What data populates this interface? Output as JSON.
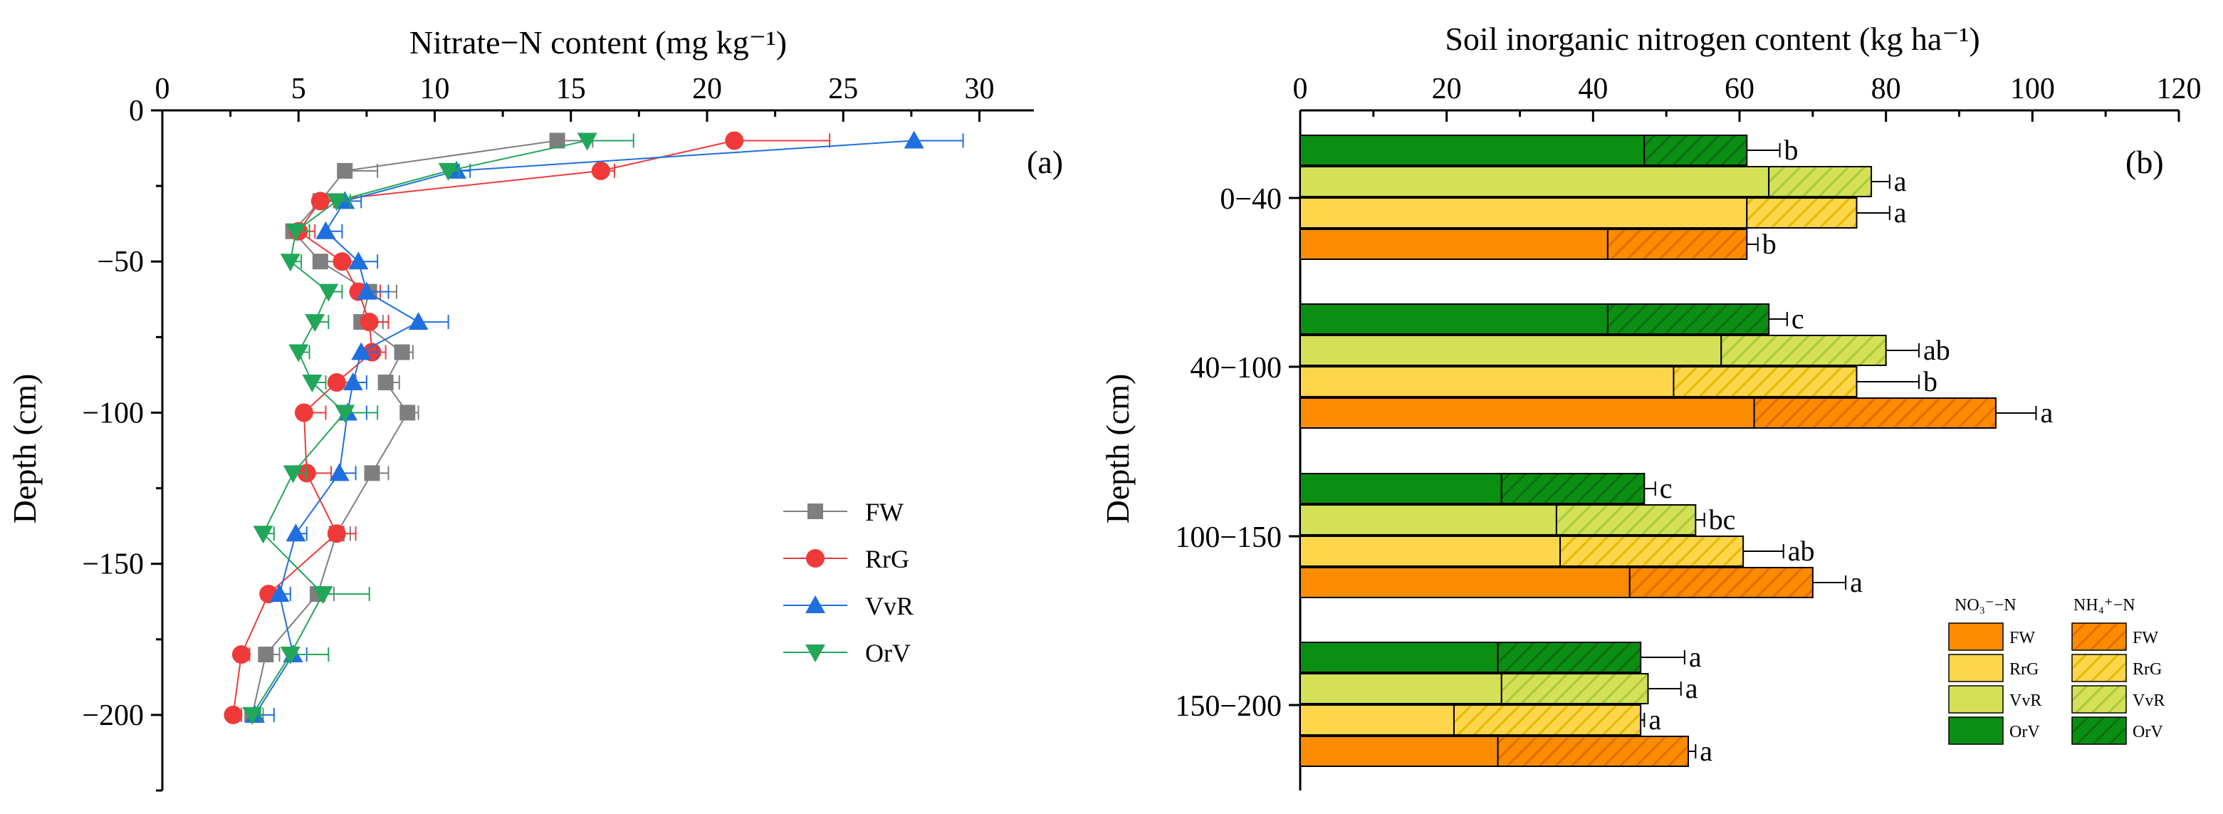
{
  "colors": {
    "FW": "#7f7f7f",
    "RrG": "#f03a3a",
    "VvR": "#1f6fe0",
    "OrV": "#22a65a",
    "bar_FW": "#fb8c00",
    "bar_RrG": "#fdd64b",
    "bar_VvR": "#d4e157",
    "bar_OrV": "#0b8f12",
    "hatch_FW": "#e66b00",
    "hatch_RrG": "#e9b800",
    "hatch_VvR": "#a8c93b",
    "hatch_OrV": "#0a6e0f"
  },
  "chart_data": [
    {
      "type": "line",
      "panel_label": "(a)",
      "title": "Nitrate−N content (mg kg⁻¹)",
      "xlabel": "Nitrate−N content (mg kg⁻¹)",
      "ylabel": "Depth (cm)",
      "xlim": [
        0,
        32
      ],
      "ylim": [
        -225,
        0
      ],
      "x_ticks": [
        "0",
        "5",
        "10",
        "15",
        "20",
        "25",
        "30"
      ],
      "y_ticks": [
        "0",
        "−50",
        "−100",
        "−150",
        "−200"
      ],
      "legend": [
        "FW",
        "RrG",
        "VvR",
        "OrV"
      ],
      "legend_position": "right",
      "series": [
        {
          "name": "FW",
          "marker": "square",
          "depth": [
            -10,
            -20,
            -30,
            -40,
            -50,
            -60,
            -70,
            -80,
            -90,
            -100,
            -120,
            -140,
            -160,
            -180,
            -200
          ],
          "values": [
            14.5,
            6.7,
            5.8,
            4.8,
            5.8,
            7.6,
            7.3,
            8.8,
            8.2,
            9.0,
            7.7,
            6.4,
            5.7,
            3.8,
            3.3
          ],
          "errors": [
            1.3,
            1.2,
            0.6,
            0.6,
            0.8,
            1.0,
            0.8,
            0.4,
            0.5,
            0.4,
            0.6,
            0.5,
            0.6,
            0.5,
            0.4
          ]
        },
        {
          "name": "RrG",
          "marker": "circle",
          "depth": [
            -10,
            -20,
            -30,
            -40,
            -50,
            -60,
            -70,
            -80,
            -90,
            -100,
            -120,
            -140,
            -160,
            -180,
            -200
          ],
          "values": [
            21.0,
            16.1,
            5.8,
            5.0,
            6.6,
            7.2,
            7.6,
            7.7,
            6.4,
            5.2,
            5.3,
            6.4,
            3.9,
            2.9,
            2.6
          ],
          "errors": [
            3.5,
            0.5,
            0.5,
            0.6,
            0.6,
            0.8,
            0.7,
            0.5,
            0.7,
            0.8,
            0.9,
            0.7,
            0.4,
            0.3,
            0.3
          ]
        },
        {
          "name": "VvR",
          "marker": "triangle-up",
          "depth": [
            -10,
            -20,
            -30,
            -40,
            -50,
            -60,
            -70,
            -80,
            -90,
            -100,
            -120,
            -140,
            -160,
            -180,
            -200
          ],
          "values": [
            27.6,
            10.8,
            6.7,
            6.0,
            7.2,
            7.5,
            9.4,
            7.3,
            7.0,
            6.8,
            6.5,
            4.9,
            4.3,
            4.8,
            3.4
          ],
          "errors": [
            1.8,
            0.5,
            0.6,
            0.6,
            0.7,
            0.8,
            1.1,
            0.6,
            0.5,
            0.7,
            0.6,
            0.4,
            0.4,
            0.5,
            0.7
          ]
        },
        {
          "name": "OrV",
          "marker": "triangle-down",
          "depth": [
            -10,
            -20,
            -30,
            -40,
            -50,
            -60,
            -70,
            -80,
            -90,
            -100,
            -120,
            -140,
            -160,
            -180,
            -200
          ],
          "values": [
            15.6,
            10.5,
            6.4,
            4.9,
            4.7,
            6.1,
            5.6,
            5.0,
            5.5,
            6.7,
            4.8,
            3.7,
            5.9,
            4.7,
            3.3
          ],
          "errors": [
            1.7,
            0.4,
            0.5,
            0.5,
            0.4,
            0.5,
            0.5,
            0.4,
            0.5,
            1.2,
            0.5,
            0.4,
            1.7,
            1.4,
            0.3
          ]
        }
      ]
    },
    {
      "type": "bar",
      "orientation": "horizontal",
      "stacked": true,
      "panel_label": "(b)",
      "title": "Soil inorganic nitrogen content (kg ha⁻¹)",
      "xlabel": "Soil inorganic nitrogen content (kg ha⁻¹)",
      "ylabel": "Depth (cm)",
      "xlim": [
        0,
        120
      ],
      "x_ticks": [
        "0",
        "20",
        "40",
        "60",
        "80",
        "100",
        "120"
      ],
      "categories": [
        "0−40",
        "40−100",
        "100−150",
        "150−200"
      ],
      "treatments": [
        "OrV",
        "VvR",
        "RrG",
        "FW"
      ],
      "components": [
        "NO₃⁻−N",
        "NH₄⁺−N"
      ],
      "legend_headers": [
        "NO₃⁻−N",
        "NH₄⁺−N"
      ],
      "legend_items": [
        "FW",
        "RrG",
        "VvR",
        "OrV"
      ],
      "legend_position": "bottom-right",
      "groups": [
        {
          "category": "0−40",
          "bars": [
            {
              "treatment": "OrV",
              "nitrate": 47,
              "total": 61,
              "error": 4.5,
              "letter": "b"
            },
            {
              "treatment": "VvR",
              "nitrate": 64,
              "total": 78,
              "error": 2.5,
              "letter": "a"
            },
            {
              "treatment": "RrG",
              "nitrate": 61,
              "total": 76,
              "error": 4.5,
              "letter": "a"
            },
            {
              "treatment": "FW",
              "nitrate": 42,
              "total": 61,
              "error": 1.5,
              "letter": "b"
            }
          ]
        },
        {
          "category": "40−100",
          "bars": [
            {
              "treatment": "OrV",
              "nitrate": 42,
              "total": 64,
              "error": 2.5,
              "letter": "c"
            },
            {
              "treatment": "VvR",
              "nitrate": 57.5,
              "total": 80,
              "error": 4.5,
              "letter": "ab"
            },
            {
              "treatment": "RrG",
              "nitrate": 51,
              "total": 76,
              "error": 8.5,
              "letter": "b"
            },
            {
              "treatment": "FW",
              "nitrate": 62,
              "total": 95,
              "error": 5.5,
              "letter": "a"
            }
          ]
        },
        {
          "category": "100−150",
          "bars": [
            {
              "treatment": "OrV",
              "nitrate": 27.5,
              "total": 47,
              "error": 1.5,
              "letter": "c"
            },
            {
              "treatment": "VvR",
              "nitrate": 35,
              "total": 54,
              "error": 1.2,
              "letter": "bc"
            },
            {
              "treatment": "RrG",
              "nitrate": 35.5,
              "total": 60.5,
              "error": 5.5,
              "letter": "ab"
            },
            {
              "treatment": "FW",
              "nitrate": 45,
              "total": 70,
              "error": 4.5,
              "letter": "a"
            }
          ]
        },
        {
          "category": "150−200",
          "bars": [
            {
              "treatment": "OrV",
              "nitrate": 27,
              "total": 46.5,
              "error": 6,
              "letter": "a"
            },
            {
              "treatment": "VvR",
              "nitrate": 27.5,
              "total": 47.5,
              "error": 4.5,
              "letter": "a"
            },
            {
              "treatment": "RrG",
              "nitrate": 21,
              "total": 46.5,
              "error": 0.5,
              "letter": "a"
            },
            {
              "treatment": "FW",
              "nitrate": 27,
              "total": 53,
              "error": 1,
              "letter": "a"
            }
          ]
        }
      ]
    }
  ]
}
